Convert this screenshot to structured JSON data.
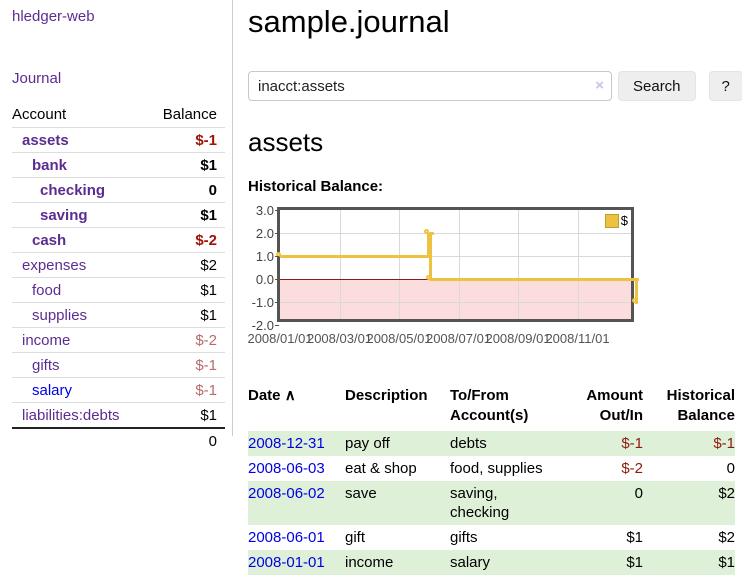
{
  "app": {
    "brand": "hledger-web",
    "nav_journal": "Journal"
  },
  "sidebar": {
    "col_account": "Account",
    "col_balance": "Balance",
    "accounts": [
      {
        "name": "assets",
        "depth": 0,
        "bold": true,
        "balance": "$-1",
        "neg": "strong",
        "link_style": "purple"
      },
      {
        "name": "bank",
        "depth": 1,
        "bold": true,
        "balance": "$1",
        "neg": "none",
        "link_style": "purple"
      },
      {
        "name": "checking",
        "depth": 2,
        "bold": true,
        "balance": "0",
        "neg": "none",
        "link_style": "purple"
      },
      {
        "name": "saving",
        "depth": 2,
        "bold": true,
        "balance": "$1",
        "neg": "none",
        "link_style": "purple"
      },
      {
        "name": "cash",
        "depth": 1,
        "bold": true,
        "balance": "$-2",
        "neg": "strong",
        "link_style": "purple"
      },
      {
        "name": "expenses",
        "depth": 0,
        "bold": false,
        "balance": "$2",
        "neg": "none",
        "link_style": "purple"
      },
      {
        "name": "food",
        "depth": 1,
        "bold": false,
        "balance": "$1",
        "neg": "none",
        "link_style": "purple"
      },
      {
        "name": "supplies",
        "depth": 1,
        "bold": false,
        "balance": "$1",
        "neg": "none",
        "link_style": "purple"
      },
      {
        "name": "income",
        "depth": 0,
        "bold": false,
        "balance": "$-2",
        "neg": "soft",
        "link_style": "purple"
      },
      {
        "name": "gifts",
        "depth": 1,
        "bold": false,
        "balance": "$-1",
        "neg": "soft",
        "link_style": "purple"
      },
      {
        "name": "salary",
        "depth": 1,
        "bold": false,
        "balance": "$-1",
        "neg": "soft",
        "link_style": "blue"
      },
      {
        "name": "liabilities:debts",
        "depth": 0,
        "bold": false,
        "balance": "$1",
        "neg": "none",
        "link_style": "purple"
      }
    ],
    "total": "0"
  },
  "header": {
    "title": "sample.journal"
  },
  "search": {
    "value": "inacct:assets",
    "clear_icon": "×",
    "button_label": "Search",
    "help_label": "?"
  },
  "account_page": {
    "title": "assets",
    "chart_label": "Historical Balance:"
  },
  "chart_data": {
    "type": "line",
    "style": "step",
    "title": "Historical Balance",
    "series": [
      {
        "name": "$",
        "color": "#edc240",
        "points": [
          [
            "2008-01-01",
            1
          ],
          [
            "2008-06-01",
            2
          ],
          [
            "2008-06-03",
            0
          ],
          [
            "2008-12-31",
            -1
          ]
        ]
      }
    ],
    "ylim": [
      -2,
      3
    ],
    "yticks": [
      "3.0",
      "2.0",
      "1.0",
      "0.0",
      "-1.0",
      "-2.0"
    ],
    "ytick_values": [
      3,
      2,
      1,
      0,
      -1,
      -2
    ],
    "xticks": [
      "2008/01/01",
      "2008/03/01",
      "2008/05/01",
      "2008/07/01",
      "2008/09/01",
      "2008/11/01"
    ],
    "x_range": [
      "2008-01-01",
      "2009-01-01"
    ],
    "legend": "$",
    "legend_position": "top-right",
    "grid": true,
    "negative_region_color": "#fbdddd",
    "zero_line_color": "#8b1a1a"
  },
  "register": {
    "columns": [
      "Date",
      "Description",
      "To/From Account(s)",
      "Amount Out/In",
      "Historical Balance"
    ],
    "sort_icon": "∧",
    "rows": [
      {
        "date": "2008-12-31",
        "description": "pay off",
        "accounts": "debts",
        "amount": "$-1",
        "amount_neg": true,
        "balance": "$-1",
        "balance_neg": true
      },
      {
        "date": "2008-06-03",
        "description": "eat & shop",
        "accounts": "food, supplies",
        "amount": "$-2",
        "amount_neg": true,
        "balance": "0",
        "balance_neg": false
      },
      {
        "date": "2008-06-02",
        "description": "save",
        "accounts": "saving, checking",
        "amount": "0",
        "amount_neg": false,
        "balance": "$2",
        "balance_neg": false
      },
      {
        "date": "2008-06-01",
        "description": "gift",
        "accounts": "gifts",
        "amount": "$1",
        "amount_neg": false,
        "balance": "$2",
        "balance_neg": false
      },
      {
        "date": "2008-01-01",
        "description": "income",
        "accounts": "salary",
        "amount": "$1",
        "amount_neg": false,
        "balance": "$1",
        "balance_neg": false
      }
    ]
  }
}
